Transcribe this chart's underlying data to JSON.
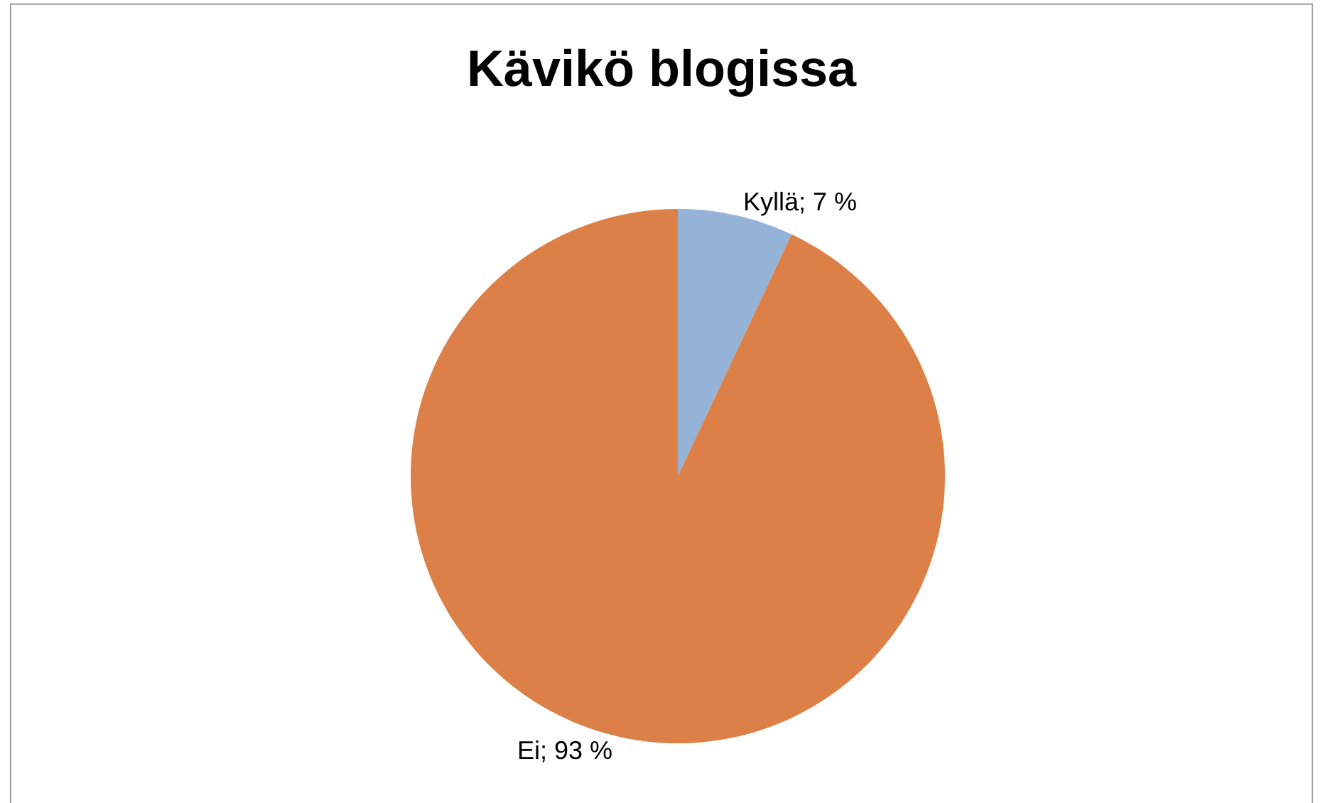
{
  "chart_data": {
    "type": "pie",
    "title": "Kävikö blogissa",
    "categories": [
      "Kyllä",
      "Ei"
    ],
    "values": [
      7,
      93
    ],
    "value_labels": [
      "7 %",
      "93 %"
    ],
    "colors": [
      "#95b3d7",
      "#dd8047"
    ],
    "legend": false
  }
}
